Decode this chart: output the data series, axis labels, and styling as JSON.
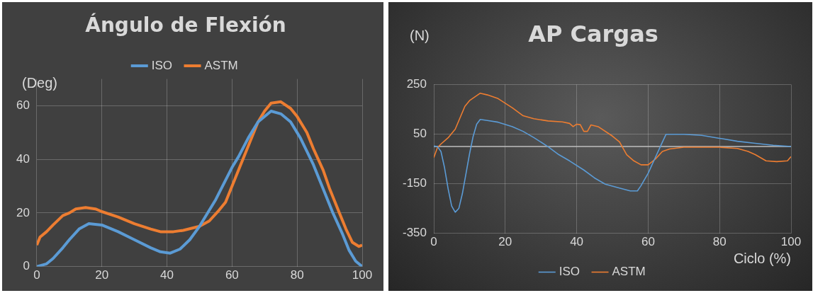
{
  "chart_data": [
    {
      "type": "line",
      "title": "Ángulo de Flexión",
      "ylabel": "(Deg)",
      "legend": "top",
      "grid": true,
      "xlim": [
        0,
        100
      ],
      "xticks": [
        0,
        20,
        40,
        60,
        80,
        100
      ],
      "ylim": [
        0,
        70
      ],
      "yticks": [
        0,
        20,
        40,
        60
      ],
      "series": [
        {
          "name": "ISO",
          "color": "#5b9bd5",
          "x": [
            0,
            3,
            5,
            8,
            10,
            13,
            16,
            20,
            25,
            30,
            35,
            38,
            41,
            44,
            47,
            50,
            55,
            60,
            62,
            65,
            68,
            72,
            75,
            78,
            81,
            85,
            88,
            91,
            94,
            96,
            98,
            100
          ],
          "values": [
            0,
            1,
            3,
            7,
            10,
            14,
            16,
            15.5,
            13,
            10,
            7,
            5.5,
            5,
            6.5,
            10,
            15,
            25,
            37,
            41,
            48,
            54,
            58,
            57,
            54,
            48,
            38,
            29,
            20,
            12,
            6,
            2,
            0
          ]
        },
        {
          "name": "ASTM",
          "color": "#ed7d31",
          "x": [
            0,
            1,
            3,
            5,
            8,
            10,
            12,
            15,
            18,
            20,
            25,
            30,
            35,
            38,
            42,
            45,
            50,
            53,
            56,
            58,
            60,
            62,
            65,
            68,
            70,
            72,
            75,
            78,
            80,
            83,
            85,
            88,
            90,
            93,
            95,
            97,
            99,
            100
          ],
          "values": [
            8,
            11,
            13,
            15.5,
            19,
            20,
            21.5,
            22,
            21.5,
            20.5,
            18.5,
            16,
            14,
            13,
            13,
            13.5,
            15,
            17,
            21,
            24,
            30,
            36,
            45,
            54,
            58,
            61,
            61.5,
            59,
            56,
            50,
            44,
            36,
            29,
            20,
            14,
            9,
            7.5,
            8
          ]
        }
      ]
    },
    {
      "type": "line",
      "title": "AP Cargas",
      "ylabel": "(N)",
      "xlabel": "Ciclo (%)",
      "legend": "bottom",
      "grid": true,
      "xlim": [
        0,
        100
      ],
      "xticks": [
        0,
        20,
        40,
        60,
        80,
        100
      ],
      "ylim": [
        -350,
        250
      ],
      "yticks": [
        -350,
        -150,
        50,
        250
      ],
      "ref_lines": [
        {
          "axis": "y",
          "value": 0,
          "color": "#bfbfbf"
        }
      ],
      "series": [
        {
          "name": "ISO",
          "color": "#5b9bd5",
          "x": [
            0,
            1,
            2,
            3,
            4,
            5,
            6,
            7,
            8,
            9,
            10,
            11,
            12,
            13,
            15,
            18,
            22,
            25,
            28,
            32,
            35,
            38,
            42,
            45,
            48,
            52,
            55,
            57,
            58,
            60,
            62,
            64,
            65,
            70,
            75,
            80,
            85,
            90,
            95,
            100
          ],
          "values": [
            2,
            0,
            -20,
            -85,
            -170,
            -240,
            -265,
            -250,
            -190,
            -110,
            -30,
            40,
            90,
            109,
            105,
            98,
            80,
            61,
            36,
            -1,
            -33,
            -58,
            -95,
            -127,
            -152,
            -168,
            -179,
            -179,
            -158,
            -108,
            -45,
            18,
            49,
            49,
            45,
            33,
            21,
            13,
            5,
            0
          ]
        },
        {
          "name": "ASTM",
          "color": "#ed7d31",
          "x": [
            0,
            1,
            2,
            4,
            6,
            8.7,
            10,
            13,
            15,
            18,
            22,
            25,
            28,
            32,
            36,
            38,
            39,
            40,
            41,
            42,
            43,
            44,
            46,
            50,
            52,
            54,
            56,
            58,
            60,
            62,
            64,
            66,
            70,
            80,
            85,
            88,
            90,
            93,
            96,
            99,
            100
          ],
          "values": [
            -45,
            -5,
            10,
            35,
            70,
            162,
            185,
            215,
            208,
            193,
            156,
            124,
            112,
            103,
            99,
            93,
            80,
            90,
            88,
            61,
            61,
            87,
            80,
            42,
            18,
            -33,
            -58,
            -74,
            -74,
            -51,
            -20,
            -10,
            -3,
            -3,
            -8,
            -20,
            -33,
            -58,
            -61,
            -58,
            -41
          ]
        }
      ]
    }
  ]
}
